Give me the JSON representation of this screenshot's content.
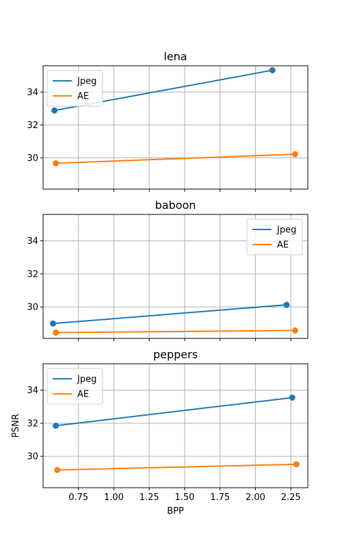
{
  "chart_data": [
    {
      "type": "line",
      "title": "lena",
      "xlim": [
        0.5,
        2.37
      ],
      "ylim": [
        28.1,
        35.6
      ],
      "yticks": [
        30,
        32,
        34
      ],
      "ytick_labels": [
        "30",
        "32",
        "34"
      ],
      "xticks": [
        0.75,
        1.0,
        1.25,
        1.5,
        1.75,
        2.0,
        2.25
      ],
      "xtick_labels": [],
      "xlabel": "",
      "ylabel": "",
      "grid": true,
      "legend_position": "upper-left",
      "series": [
        {
          "name": "Jpeg",
          "color": "#1f77b4",
          "x": [
            0.58,
            2.12
          ],
          "y": [
            32.88,
            35.33
          ]
        },
        {
          "name": "AE",
          "color": "#ff7f0e",
          "x": [
            0.59,
            2.28
          ],
          "y": [
            29.67,
            30.22
          ]
        }
      ]
    },
    {
      "type": "line",
      "title": "baboon",
      "xlim": [
        0.5,
        2.37
      ],
      "ylim": [
        28.1,
        35.6
      ],
      "yticks": [
        30,
        32,
        34
      ],
      "ytick_labels": [
        "30",
        "32",
        "34"
      ],
      "xticks": [
        0.75,
        1.0,
        1.25,
        1.5,
        1.75,
        2.0,
        2.25
      ],
      "xtick_labels": [],
      "xlabel": "",
      "ylabel": "",
      "grid": true,
      "legend_position": "upper-right",
      "series": [
        {
          "name": "Jpeg",
          "color": "#1f77b4",
          "x": [
            0.57,
            2.22
          ],
          "y": [
            29.0,
            30.13
          ]
        },
        {
          "name": "AE",
          "color": "#ff7f0e",
          "x": [
            0.59,
            2.28
          ],
          "y": [
            28.45,
            28.58
          ]
        }
      ]
    },
    {
      "type": "line",
      "title": "peppers",
      "xlim": [
        0.5,
        2.37
      ],
      "ylim": [
        28.1,
        35.6
      ],
      "yticks": [
        30,
        32,
        34
      ],
      "ytick_labels": [
        "30",
        "32",
        "34"
      ],
      "xticks": [
        0.75,
        1.0,
        1.25,
        1.5,
        1.75,
        2.0,
        2.25
      ],
      "xtick_labels": [
        "0.75",
        "1.00",
        "1.25",
        "1.50",
        "1.75",
        "2.00",
        "2.25"
      ],
      "xlabel": "BPP",
      "ylabel": "PSNR",
      "grid": true,
      "legend_position": "upper-left",
      "series": [
        {
          "name": "Jpeg",
          "color": "#1f77b4",
          "x": [
            0.59,
            2.26
          ],
          "y": [
            31.85,
            33.55
          ]
        },
        {
          "name": "AE",
          "color": "#ff7f0e",
          "x": [
            0.6,
            2.29
          ],
          "y": [
            29.17,
            29.52
          ]
        }
      ]
    }
  ]
}
